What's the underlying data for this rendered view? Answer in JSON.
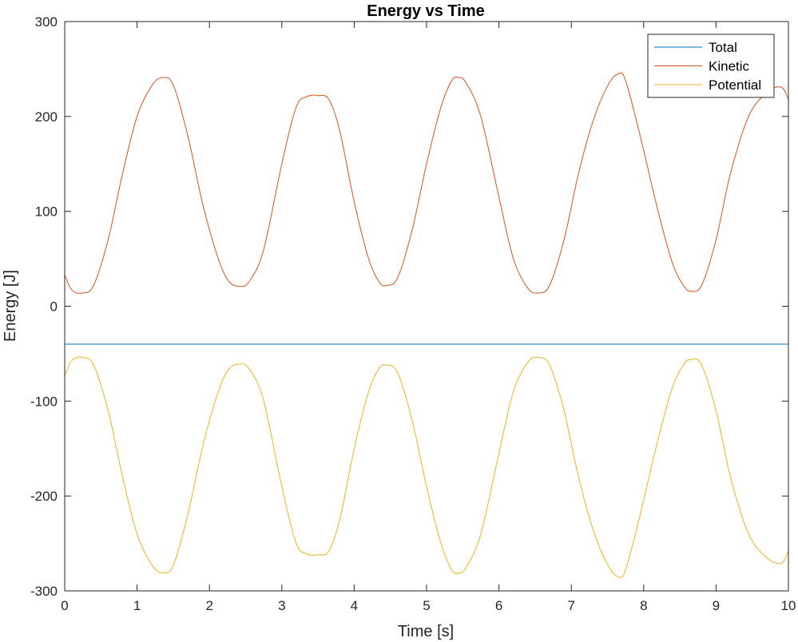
{
  "chart_data": {
    "type": "line",
    "title": "Energy vs Time",
    "xlabel": "Time [s]",
    "ylabel": "Energy [J]",
    "xlim": [
      0,
      10
    ],
    "ylim": [
      -300,
      300
    ],
    "xticks": [
      0,
      1,
      2,
      3,
      4,
      5,
      6,
      7,
      8,
      9,
      10
    ],
    "yticks": [
      300,
      200,
      100,
      0,
      -100,
      -200,
      -300
    ],
    "grid": false,
    "legend_position": "top-right",
    "series": [
      {
        "name": "Total",
        "color": "#0072BD",
        "points": [
          [
            0,
            -40
          ],
          [
            10,
            -40
          ]
        ]
      },
      {
        "name": "Kinetic",
        "color": "#D95319",
        "points": [
          [
            0.0,
            33
          ],
          [
            0.1,
            17
          ],
          [
            0.25,
            14
          ],
          [
            0.4,
            22
          ],
          [
            0.6,
            70
          ],
          [
            0.8,
            140
          ],
          [
            1.0,
            200
          ],
          [
            1.2,
            232
          ],
          [
            1.35,
            241
          ],
          [
            1.5,
            233
          ],
          [
            1.7,
            180
          ],
          [
            1.9,
            110
          ],
          [
            2.1,
            55
          ],
          [
            2.25,
            28
          ],
          [
            2.4,
            21
          ],
          [
            2.55,
            26
          ],
          [
            2.75,
            60
          ],
          [
            3.0,
            150
          ],
          [
            3.2,
            210
          ],
          [
            3.35,
            221
          ],
          [
            3.5,
            222
          ],
          [
            3.65,
            218
          ],
          [
            3.8,
            185
          ],
          [
            4.0,
            110
          ],
          [
            4.2,
            50
          ],
          [
            4.35,
            25
          ],
          [
            4.45,
            22
          ],
          [
            4.6,
            30
          ],
          [
            4.8,
            80
          ],
          [
            5.0,
            150
          ],
          [
            5.2,
            210
          ],
          [
            5.35,
            238
          ],
          [
            5.45,
            241
          ],
          [
            5.55,
            235
          ],
          [
            5.75,
            200
          ],
          [
            6.0,
            115
          ],
          [
            6.2,
            50
          ],
          [
            6.4,
            19
          ],
          [
            6.55,
            14
          ],
          [
            6.7,
            22
          ],
          [
            6.9,
            70
          ],
          [
            7.1,
            140
          ],
          [
            7.3,
            195
          ],
          [
            7.5,
            232
          ],
          [
            7.65,
            245
          ],
          [
            7.75,
            238
          ],
          [
            7.95,
            180
          ],
          [
            8.2,
            100
          ],
          [
            8.4,
            45
          ],
          [
            8.55,
            22
          ],
          [
            8.65,
            16
          ],
          [
            8.8,
            22
          ],
          [
            9.0,
            70
          ],
          [
            9.2,
            140
          ],
          [
            9.45,
            200
          ],
          [
            9.7,
            225
          ],
          [
            9.9,
            231
          ],
          [
            10.0,
            218
          ]
        ]
      },
      {
        "name": "Potential",
        "color": "#EDB120",
        "points": [
          [
            0.0,
            -73
          ],
          [
            0.1,
            -57
          ],
          [
            0.25,
            -54
          ],
          [
            0.4,
            -62
          ],
          [
            0.6,
            -110
          ],
          [
            0.8,
            -180
          ],
          [
            1.0,
            -240
          ],
          [
            1.2,
            -272
          ],
          [
            1.35,
            -281
          ],
          [
            1.5,
            -273
          ],
          [
            1.7,
            -220
          ],
          [
            1.9,
            -150
          ],
          [
            2.1,
            -95
          ],
          [
            2.25,
            -68
          ],
          [
            2.4,
            -61
          ],
          [
            2.55,
            -66
          ],
          [
            2.75,
            -100
          ],
          [
            3.0,
            -190
          ],
          [
            3.2,
            -250
          ],
          [
            3.35,
            -261
          ],
          [
            3.5,
            -262
          ],
          [
            3.65,
            -258
          ],
          [
            3.8,
            -225
          ],
          [
            4.0,
            -150
          ],
          [
            4.2,
            -90
          ],
          [
            4.35,
            -65
          ],
          [
            4.45,
            -62
          ],
          [
            4.6,
            -70
          ],
          [
            4.8,
            -120
          ],
          [
            5.0,
            -190
          ],
          [
            5.2,
            -250
          ],
          [
            5.35,
            -278
          ],
          [
            5.45,
            -281
          ],
          [
            5.55,
            -275
          ],
          [
            5.75,
            -240
          ],
          [
            6.0,
            -155
          ],
          [
            6.2,
            -90
          ],
          [
            6.4,
            -59
          ],
          [
            6.55,
            -54
          ],
          [
            6.7,
            -62
          ],
          [
            6.9,
            -110
          ],
          [
            7.1,
            -180
          ],
          [
            7.3,
            -235
          ],
          [
            7.5,
            -272
          ],
          [
            7.65,
            -285
          ],
          [
            7.75,
            -278
          ],
          [
            7.95,
            -220
          ],
          [
            8.2,
            -140
          ],
          [
            8.4,
            -85
          ],
          [
            8.55,
            -62
          ],
          [
            8.65,
            -56
          ],
          [
            8.8,
            -62
          ],
          [
            9.0,
            -110
          ],
          [
            9.2,
            -180
          ],
          [
            9.45,
            -240
          ],
          [
            9.7,
            -265
          ],
          [
            9.9,
            -271
          ],
          [
            10.0,
            -258
          ]
        ]
      }
    ]
  }
}
